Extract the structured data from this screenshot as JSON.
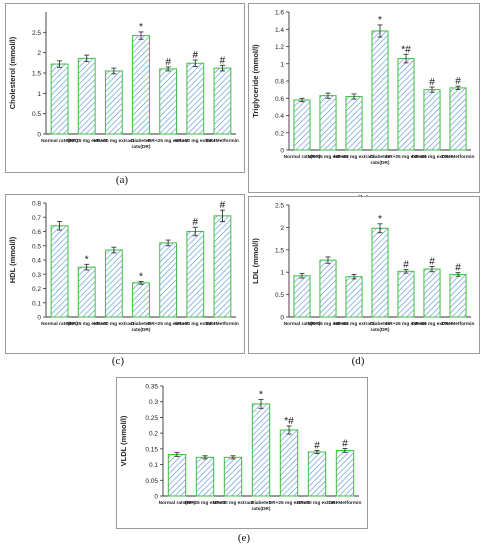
{
  "colors": {
    "bar_border": "#3fbf3f",
    "bar_hatch": "#4a90d9",
    "axis": "#333333",
    "text": "#222222"
  },
  "chart_data": [
    {
      "id": "a",
      "type": "bar",
      "caption": "(a)",
      "ylabel": "Cholesterol (mmol/l)",
      "ylim": [
        0,
        3
      ],
      "yticks": [
        0,
        0.5,
        1,
        1.5,
        2,
        2.5
      ],
      "categories": [
        "Normal rats(NR)",
        "NR+25 mg extract",
        "NR+50 mg extract",
        "Diabetes rats(DR)",
        "DR+25 mg extract",
        "DR+50 mg extract",
        "DR+Metformin"
      ],
      "values": [
        1.72,
        1.86,
        1.55,
        2.42,
        1.6,
        1.74,
        1.62
      ],
      "errors": [
        0.08,
        0.08,
        0.07,
        0.09,
        0.05,
        0.08,
        0.07
      ],
      "annotations": [
        "",
        "",
        "",
        "*",
        "#",
        "#",
        "#"
      ]
    },
    {
      "id": "b",
      "type": "bar",
      "caption": "(b)",
      "ylabel": "Triglyceride (mmol/l)",
      "ylim": [
        0,
        1.6
      ],
      "yticks": [
        0,
        0.2,
        0.4,
        0.6,
        0.8,
        1,
        1.2,
        1.4,
        1.6
      ],
      "categories": [
        "Normal rats(NR)",
        "NR+25 mg extract",
        "NR+50 mg extract",
        "Diabetes rats(DR)",
        "DR+25 mg extract",
        "DR+50 mg extract",
        "DR+Metformin"
      ],
      "values": [
        0.58,
        0.63,
        0.62,
        1.38,
        1.06,
        0.7,
        0.72
      ],
      "errors": [
        0.02,
        0.03,
        0.03,
        0.07,
        0.05,
        0.03,
        0.02
      ],
      "annotations": [
        "",
        "",
        "",
        "*",
        "*#",
        "#",
        "#"
      ]
    },
    {
      "id": "c",
      "type": "bar",
      "caption": "(c)",
      "ylabel": "HDL (mmol/l)",
      "ylim": [
        0,
        0.8
      ],
      "yticks": [
        0,
        0.1,
        0.2,
        0.3,
        0.4,
        0.5,
        0.6,
        0.7,
        0.8
      ],
      "categories": [
        "Normal rats(NR)",
        "NR+25 mg extract",
        "NR+50 mg extract",
        "Diabetes rats(DR)",
        "DR+25 mg extract",
        "DR+50 mg extract",
        "DR+Metformin"
      ],
      "values": [
        0.64,
        0.35,
        0.47,
        0.24,
        0.52,
        0.6,
        0.71
      ],
      "errors": [
        0.03,
        0.02,
        0.02,
        0.01,
        0.02,
        0.03,
        0.04
      ],
      "annotations": [
        "",
        "*",
        "",
        "*",
        "",
        "#",
        "#"
      ]
    },
    {
      "id": "d",
      "type": "bar",
      "caption": "(d)",
      "ylabel": "LDL (mmol/l)",
      "ylim": [
        0,
        2.5
      ],
      "yticks": [
        0,
        0.5,
        1,
        1.5,
        2,
        2.5
      ],
      "categories": [
        "Normal rats(NR)",
        "NR+25 mg extract",
        "NR+50 mg extract",
        "Diabetes rats(DR)",
        "DR+25 mg extract",
        "DR+50 mg extract",
        "DR+Metformin"
      ],
      "values": [
        0.92,
        1.27,
        0.9,
        1.98,
        1.02,
        1.07,
        0.95
      ],
      "errors": [
        0.05,
        0.07,
        0.05,
        0.1,
        0.04,
        0.06,
        0.04
      ],
      "annotations": [
        "",
        "",
        "",
        "*",
        "#",
        "#",
        "#"
      ]
    },
    {
      "id": "e",
      "type": "bar",
      "caption": "(e)",
      "ylabel": "VLDL (mmol/l)",
      "ylim": [
        0,
        0.35
      ],
      "yticks": [
        0,
        0.05,
        0.1,
        0.15,
        0.2,
        0.25,
        0.3,
        0.35
      ],
      "categories": [
        "Normal rats(NR)",
        "NR+25 mg extract",
        "NR+50 mg extract",
        "Diabetes rats(DR)",
        "DR+25 mg extract",
        "DR+50 mg extract",
        "DR+Metformin"
      ],
      "values": [
        0.132,
        0.123,
        0.123,
        0.293,
        0.21,
        0.14,
        0.145
      ],
      "errors": [
        0.006,
        0.005,
        0.005,
        0.014,
        0.013,
        0.005,
        0.006
      ],
      "annotations": [
        "",
        "",
        "",
        "*",
        "*#",
        "#",
        "#"
      ]
    }
  ]
}
